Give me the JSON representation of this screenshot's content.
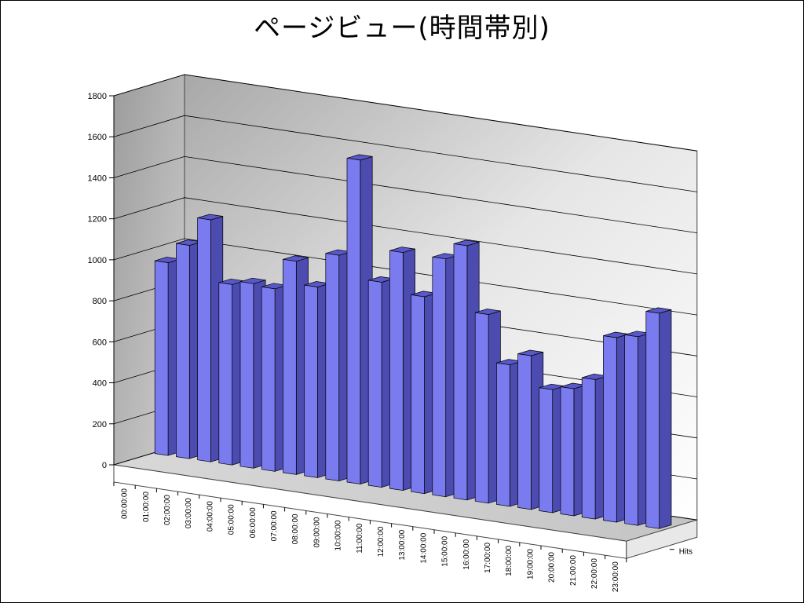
{
  "chart_data": {
    "type": "bar",
    "title": "ページビュー(時間帯別)",
    "xlabel": "",
    "ylabel": "",
    "ylim": [
      0,
      1800
    ],
    "yticks": [
      0,
      200,
      400,
      600,
      800,
      1000,
      1200,
      1400,
      1600,
      1800
    ],
    "grid": true,
    "three_d": true,
    "categories": [
      "00:00:00",
      "01:00:00",
      "02:00:00",
      "03:00:00",
      "04:00:00",
      "05:00:00",
      "06:00:00",
      "07:00:00",
      "08:00:00",
      "09:00:00",
      "10:00:00",
      "11:00:00",
      "12:00:00",
      "13:00:00",
      "14:00:00",
      "15:00:00",
      "16:00:00",
      "17:00:00",
      "18:00:00",
      "19:00:00",
      "20:00:00",
      "21:00:00",
      "22:00:00",
      "23:00:00"
    ],
    "series": [
      {
        "name": "Hits",
        "color": "#7b7bf0",
        "values": [
          940,
          1040,
          1180,
          880,
          900,
          890,
          1040,
          930,
          1100,
          1580,
          1000,
          1160,
          960,
          1160,
          1240,
          920,
          690,
          750,
          600,
          620,
          680,
          900,
          920,
          1050
        ]
      }
    ]
  }
}
